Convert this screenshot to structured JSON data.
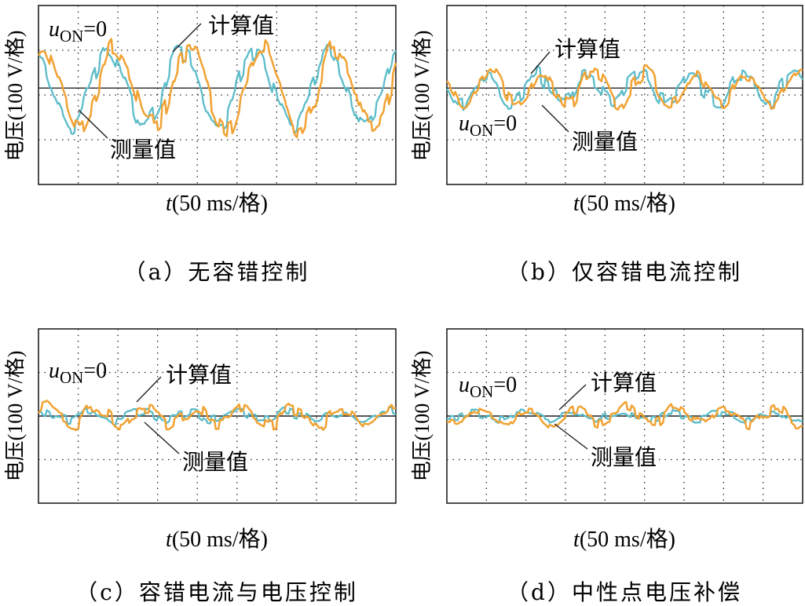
{
  "chart_data": [
    {
      "type": "line",
      "caption": "（a）无容错控制",
      "ylabel": "电压(100 V/格)",
      "xlabel_italic": "t",
      "xlabel_rest": "(50 ms/格)",
      "u_symbol": "u",
      "u_subscript": "ON",
      "u_value": "=0",
      "ylim": [
        -2.1,
        1.8
      ],
      "xlim": [
        0,
        9
      ],
      "zero_line": true,
      "grid": true,
      "series": [
        {
          "name": "计算值",
          "color": "#f1a233",
          "kind": "calc",
          "amplitude": 0.85,
          "period": 1.85,
          "phase": 0.2,
          "noise": 0.22
        },
        {
          "name": "测量值",
          "color": "#5bbcc9",
          "kind": "meas",
          "amplitude": 0.8,
          "period": 1.85,
          "phase": 0.3,
          "noise": 0.18
        }
      ]
    },
    {
      "type": "line",
      "caption": "（b）仅容错电流控制",
      "ylabel": "电压(100 V/格)",
      "xlabel_italic": "t",
      "xlabel_rest": "(50 ms/格)",
      "u_symbol": "u",
      "u_subscript": "ON",
      "u_value": "=0",
      "ylim": [
        -2.1,
        1.8
      ],
      "xlim": [
        0,
        9
      ],
      "zero_line": true,
      "grid": true,
      "series": [
        {
          "name": "计算值",
          "color": "#f1a233",
          "kind": "calc",
          "amplitude": 0.35,
          "period": 1.3,
          "phase": 0.4,
          "noise": 0.15
        },
        {
          "name": "测量值",
          "color": "#5bbcc9",
          "kind": "meas",
          "amplitude": 0.3,
          "period": 1.3,
          "phase": 0.5,
          "noise": 0.18
        }
      ]
    },
    {
      "type": "line",
      "caption": "（c）容错电流与电压控制",
      "ylabel": "电压(100 V/格)",
      "xlabel_italic": "t",
      "xlabel_rest": "(50 ms/格)",
      "u_symbol": "u",
      "u_subscript": "ON",
      "u_value": "=0",
      "ylim": [
        -2.1,
        2.1
      ],
      "xlim": [
        0,
        9
      ],
      "zero_line": true,
      "grid": true,
      "series": [
        {
          "name": "计算值",
          "color": "#f1a233",
          "kind": "calc",
          "amplitude": 0.2,
          "period": 1.25,
          "phase": 0.1,
          "noise": 0.15
        },
        {
          "name": "测量值",
          "color": "#5bbcc9",
          "kind": "meas",
          "amplitude": 0.1,
          "period": 1.25,
          "phase": 0.2,
          "noise": 0.1
        }
      ]
    },
    {
      "type": "line",
      "caption": "（d）中性点电压补偿",
      "ylabel": "电压(100 V/格)",
      "xlabel_italic": "t",
      "xlabel_rest": "(50 ms/格)",
      "u_symbol": "u",
      "u_subscript": "ON",
      "u_value": "=0",
      "ylim": [
        -2.1,
        2.1
      ],
      "xlim": [
        0,
        9
      ],
      "zero_line": true,
      "grid": true,
      "series": [
        {
          "name": "计算值",
          "color": "#f1a233",
          "kind": "calc",
          "amplitude": 0.18,
          "period": 1.25,
          "phase": 0.6,
          "noise": 0.13
        },
        {
          "name": "测量值",
          "color": "#5bbcc9",
          "kind": "meas",
          "amplitude": 0.08,
          "period": 1.25,
          "phase": 0.7,
          "noise": 0.09
        }
      ]
    }
  ]
}
